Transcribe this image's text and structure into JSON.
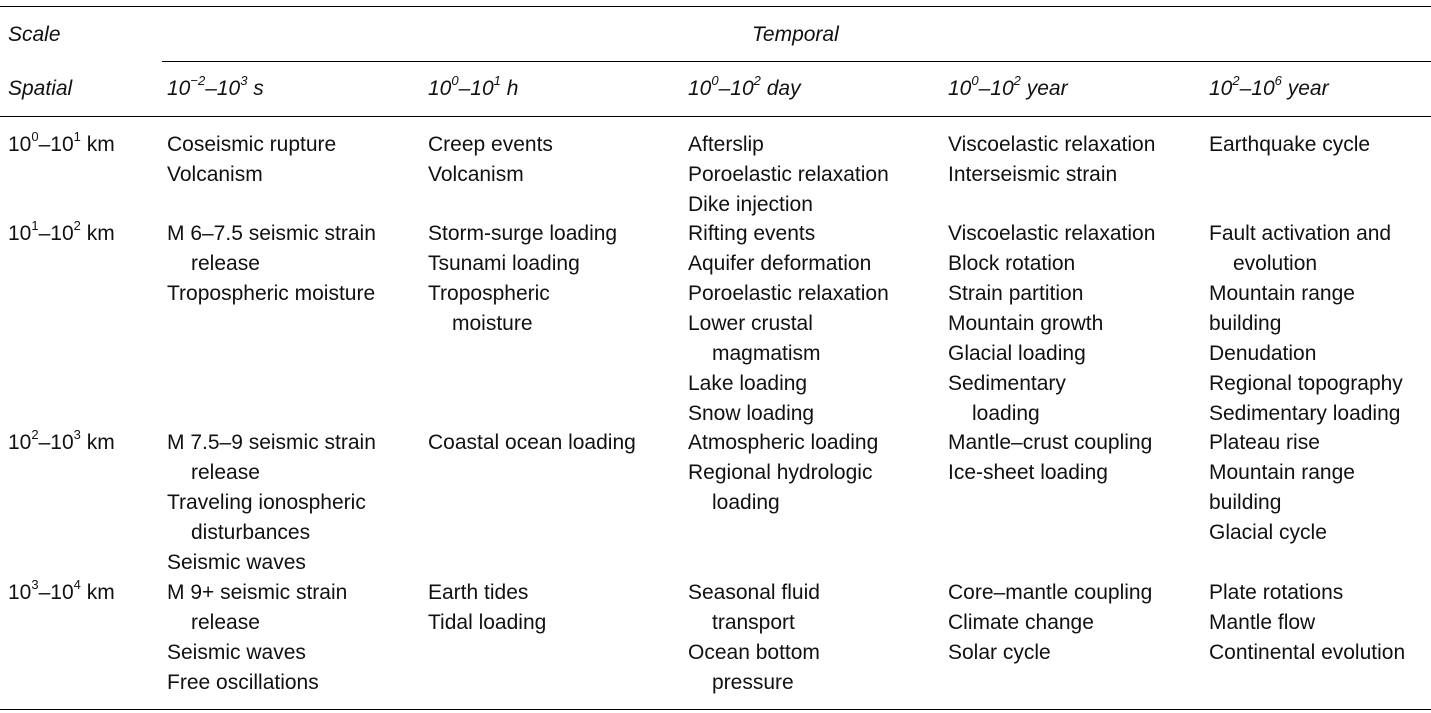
{
  "header": {
    "scale_label": "Scale",
    "temporal_label": "Temporal",
    "spatial_label": "Spatial",
    "columns": [
      {
        "base1": "10",
        "exp1": "−2",
        "sep": "–",
        "base2": "10",
        "exp2": "3",
        "unit": " s"
      },
      {
        "base1": "10",
        "exp1": "0",
        "sep": "–",
        "base2": "10",
        "exp2": "1",
        "unit": " h"
      },
      {
        "base1": "10",
        "exp1": "0",
        "sep": "–",
        "base2": "10",
        "exp2": "2",
        "unit": " day"
      },
      {
        "base1": "10",
        "exp1": "0",
        "sep": "–",
        "base2": "10",
        "exp2": "2",
        "unit": " year"
      },
      {
        "base1": "10",
        "exp1": "2",
        "sep": "–",
        "base2": "10",
        "exp2": "6",
        "unit": " year"
      }
    ]
  },
  "rows": [
    {
      "spatial": {
        "base1": "10",
        "exp1": "0",
        "sep": "–",
        "base2": "10",
        "exp2": "1",
        "unit": " km"
      },
      "cells": [
        [
          [
            "Coseismic rupture",
            false
          ],
          [
            "Volcanism",
            false
          ]
        ],
        [
          [
            "Creep events",
            false
          ],
          [
            "Volcanism",
            false
          ]
        ],
        [
          [
            "Afterslip",
            false
          ],
          [
            "Poroelastic relaxation",
            false
          ],
          [
            "Dike injection",
            false
          ]
        ],
        [
          [
            "Viscoelastic relaxation",
            false
          ],
          [
            "Interseismic strain",
            false
          ]
        ],
        [
          [
            "Earthquake cycle",
            false
          ]
        ]
      ]
    },
    {
      "spatial": {
        "base1": "10",
        "exp1": "1",
        "sep": "–",
        "base2": "10",
        "exp2": "2",
        "unit": " km"
      },
      "cells": [
        [
          [
            "M 6–7.5 seismic strain",
            false
          ],
          [
            "release",
            true
          ],
          [
            "Tropospheric moisture",
            false
          ]
        ],
        [
          [
            "Storm-surge loading",
            false
          ],
          [
            "Tsunami loading",
            false
          ],
          [
            "Tropospheric",
            false
          ],
          [
            "moisture",
            true
          ]
        ],
        [
          [
            "Rifting events",
            false
          ],
          [
            "Aquifer deformation",
            false
          ],
          [
            "Poroelastic relaxation",
            false
          ],
          [
            "Lower crustal",
            false
          ],
          [
            "magmatism",
            true
          ],
          [
            "Lake loading",
            false
          ],
          [
            "Snow loading",
            false
          ]
        ],
        [
          [
            "Viscoelastic relaxation",
            false
          ],
          [
            "Block rotation",
            false
          ],
          [
            "Strain partition",
            false
          ],
          [
            "Mountain growth",
            false
          ],
          [
            "Glacial loading",
            false
          ],
          [
            "Sedimentary",
            false
          ],
          [
            "loading",
            true
          ]
        ],
        [
          [
            "Fault activation and",
            false
          ],
          [
            "evolution",
            true
          ],
          [
            "Mountain range",
            false
          ],
          [
            "building",
            false
          ],
          [
            "Denudation",
            false
          ],
          [
            "Regional topography",
            false
          ],
          [
            "Sedimentary loading",
            false
          ]
        ]
      ]
    },
    {
      "spatial": {
        "base1": "10",
        "exp1": "2",
        "sep": "–",
        "base2": "10",
        "exp2": "3",
        "unit": " km"
      },
      "cells": [
        [
          [
            "M 7.5–9 seismic strain",
            false
          ],
          [
            "release",
            true
          ],
          [
            "Traveling ionospheric",
            false
          ],
          [
            "disturbances",
            true
          ],
          [
            "Seismic waves",
            false
          ]
        ],
        [
          [
            "Coastal ocean loading",
            false
          ]
        ],
        [
          [
            "Atmospheric loading",
            false
          ],
          [
            "Regional hydrologic",
            false
          ],
          [
            "loading",
            true
          ]
        ],
        [
          [
            "Mantle–crust coupling",
            false
          ],
          [
            "Ice-sheet loading",
            false
          ]
        ],
        [
          [
            "Plateau rise",
            false
          ],
          [
            "Mountain range",
            false
          ],
          [
            "building",
            false
          ],
          [
            "Glacial cycle",
            false
          ]
        ]
      ]
    },
    {
      "spatial": {
        "base1": "10",
        "exp1": "3",
        "sep": "–",
        "base2": "10",
        "exp2": "4",
        "unit": " km"
      },
      "cells": [
        [
          [
            "M 9+ seismic strain",
            false
          ],
          [
            "release",
            true
          ],
          [
            "Seismic waves",
            false
          ],
          [
            "Free oscillations",
            false
          ]
        ],
        [
          [
            "Earth tides",
            false
          ],
          [
            "Tidal loading",
            false
          ]
        ],
        [
          [
            "Seasonal fluid",
            false
          ],
          [
            "transport",
            true
          ],
          [
            "Ocean bottom",
            false
          ],
          [
            "pressure",
            true
          ]
        ],
        [
          [
            "Core–mantle coupling",
            false
          ],
          [
            "Climate change",
            false
          ],
          [
            "Solar cycle",
            false
          ]
        ],
        [
          [
            "Plate rotations",
            false
          ],
          [
            "Mantle flow",
            false
          ],
          [
            "Continental evolution",
            false
          ]
        ]
      ]
    }
  ]
}
